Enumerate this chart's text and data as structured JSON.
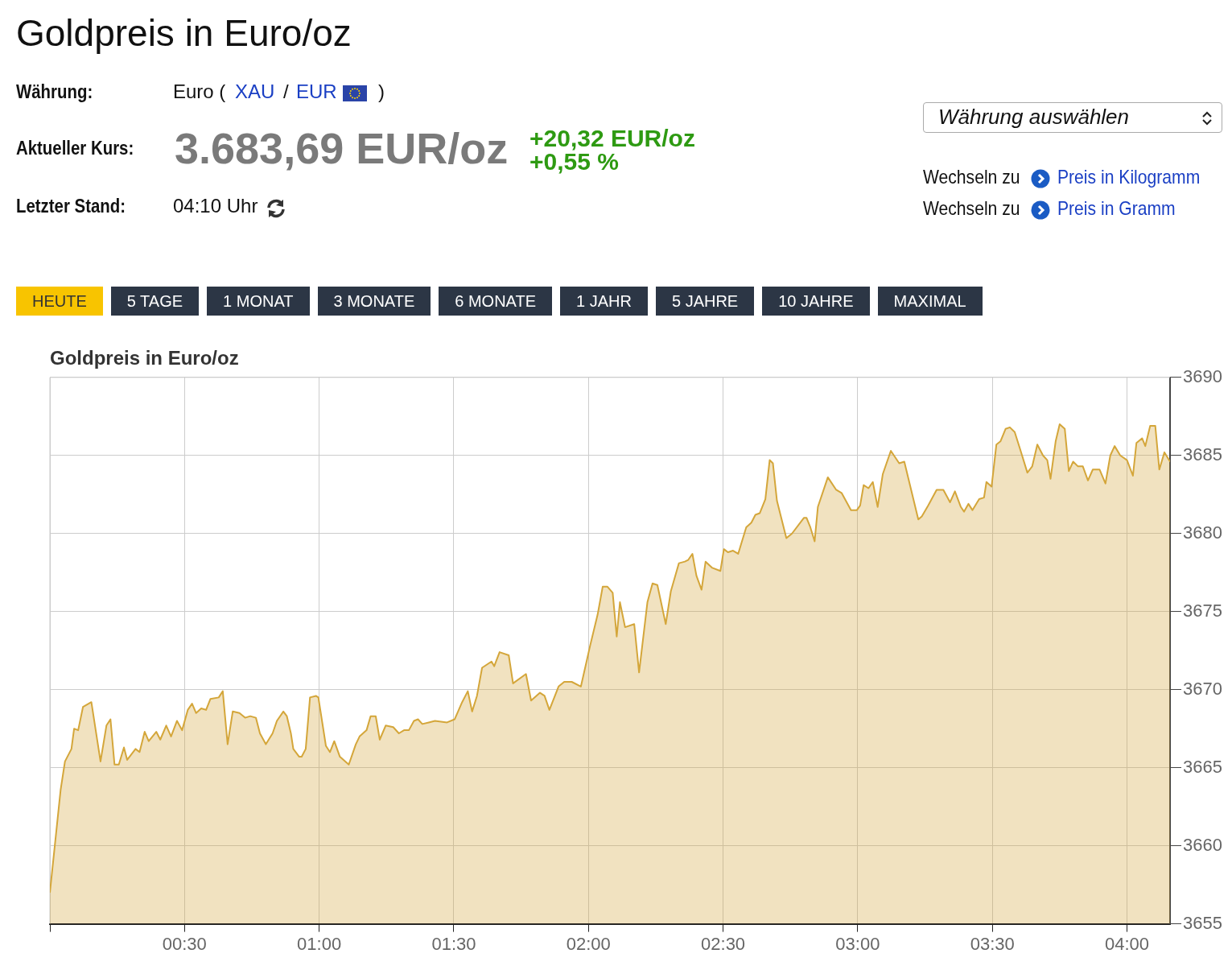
{
  "chart_data": {
    "type": "area",
    "title": "Goldpreis in Euro/oz",
    "annotations": [
      "Goldpreis in Euro/oz",
      "Währung:",
      "Euro (",
      "XAU",
      "/",
      "EUR",
      ")",
      "Aktueller Kurs:",
      "3.683,69 EUR/oz",
      "+20,32 EUR/oz",
      "+0,55 %",
      "Letzter Stand:",
      "04:10 Uhr",
      "Währung auswählen",
      "Wechseln zu",
      "Preis in Kilogramm",
      "Wechseln zu",
      "Preis in Gramm",
      "HEUTE",
      "5 TAGE",
      "1 MONAT",
      "3 MONATE",
      "6 MONATE",
      "1 JAHR",
      "5 JAHRE",
      "10 JAHRE",
      "MAXIMAL"
    ],
    "x": [
      0,
      0.04,
      0.056,
      0.08,
      0.09,
      0.105,
      0.123,
      0.154,
      0.188,
      0.21,
      0.225,
      0.24,
      0.256,
      0.275,
      0.287,
      0.318,
      0.333,
      0.352,
      0.367,
      0.395,
      0.41,
      0.432,
      0.45,
      0.472,
      0.491,
      0.512,
      0.528,
      0.543,
      0.562,
      0.58,
      0.596,
      0.627,
      0.642,
      0.66,
      0.679,
      0.704,
      0.725,
      0.744,
      0.765,
      0.78,
      0.802,
      0.827,
      0.843,
      0.867,
      0.88,
      0.895,
      0.904,
      0.926,
      0.935,
      0.95,
      0.966,
      0.988,
      0.997,
      1.025,
      1.04,
      1.056,
      1.077,
      1.11,
      1.136,
      1.15,
      1.176,
      1.191,
      1.21,
      1.225,
      1.247,
      1.275,
      1.296,
      1.315,
      1.333,
      1.352,
      1.367,
      1.383,
      1.407,
      1.43,
      1.475,
      1.503,
      1.531,
      1.552,
      1.568,
      1.586,
      1.605,
      1.64,
      1.65,
      1.67,
      1.704,
      1.72,
      1.768,
      1.787,
      1.82,
      1.837,
      1.855,
      1.889,
      1.91,
      1.938,
      1.972,
      2.006,
      2.034,
      2.053,
      2.07,
      2.09,
      2.105,
      2.117,
      2.136,
      2.17,
      2.188,
      2.219,
      2.238,
      2.256,
      2.287,
      2.306,
      2.336,
      2.358,
      2.37,
      2.386,
      2.401,
      2.42,
      2.435,
      2.46,
      2.49,
      2.503,
      2.518,
      2.537,
      2.556,
      2.586,
      2.605,
      2.62,
      2.636,
      2.657,
      2.673,
      2.685,
      2.7,
      2.735,
      2.756,
      2.8,
      2.81,
      2.824,
      2.84,
      2.852,
      2.889,
      2.92,
      2.94,
      2.975,
      2.997,
      3.009,
      3.022,
      3.04,
      3.056,
      3.074,
      3.093,
      3.123,
      3.154,
      3.173,
      3.225,
      3.238,
      3.262,
      3.293,
      3.318,
      3.343,
      3.361,
      3.383,
      3.395,
      3.411,
      3.426,
      3.451,
      3.469,
      3.478,
      3.497,
      3.515,
      3.53,
      3.549,
      3.565,
      3.583,
      3.605,
      3.63,
      3.648,
      3.667,
      3.688,
      3.704,
      3.716,
      3.735,
      3.75,
      3.769,
      3.784,
      3.8,
      3.818,
      3.836,
      3.855,
      3.873,
      3.898,
      3.92,
      3.938,
      3.954,
      3.975,
      4.0,
      4.022,
      4.035,
      4.056,
      4.068,
      4.086,
      4.105,
      4.12,
      4.139,
      4.16
    ],
    "values": [
      3657.0,
      3663.6,
      3665.4,
      3666.2,
      3667.5,
      3667.4,
      3668.9,
      3669.2,
      3665.4,
      3667.7,
      3668.1,
      3665.2,
      3665.2,
      3666.3,
      3665.5,
      3666.2,
      3666.0,
      3667.3,
      3666.7,
      3667.3,
      3666.8,
      3667.7,
      3667.0,
      3668.0,
      3667.4,
      3668.7,
      3669.1,
      3668.5,
      3668.8,
      3668.7,
      3669.4,
      3669.5,
      3669.9,
      3666.5,
      3668.6,
      3668.5,
      3668.2,
      3668.3,
      3668.2,
      3667.2,
      3666.5,
      3667.2,
      3668.0,
      3668.6,
      3668.3,
      3667.2,
      3666.2,
      3665.7,
      3665.7,
      3666.2,
      3669.5,
      3669.6,
      3669.5,
      3666.4,
      3666.0,
      3666.7,
      3665.7,
      3665.2,
      3666.5,
      3667.0,
      3667.4,
      3668.3,
      3668.3,
      3666.8,
      3667.7,
      3667.6,
      3667.2,
      3667.4,
      3667.4,
      3668.0,
      3668.1,
      3667.8,
      3667.9,
      3668.0,
      3667.9,
      3668.1,
      3669.2,
      3669.9,
      3668.6,
      3669.6,
      3671.4,
      3671.8,
      3671.5,
      3672.4,
      3672.2,
      3670.4,
      3671.0,
      3669.3,
      3669.8,
      3669.6,
      3668.7,
      3670.2,
      3670.5,
      3670.5,
      3670.2,
      3672.8,
      3674.8,
      3676.6,
      3676.6,
      3676.2,
      3673.4,
      3675.6,
      3674.0,
      3674.2,
      3671.1,
      3675.6,
      3676.8,
      3676.7,
      3674.2,
      3676.3,
      3678.1,
      3678.2,
      3678.3,
      3678.7,
      3677.3,
      3676.4,
      3678.2,
      3677.8,
      3677.6,
      3679.0,
      3678.8,
      3678.9,
      3678.7,
      3680.4,
      3680.7,
      3681.2,
      3681.3,
      3682.2,
      3684.7,
      3684.5,
      3682.1,
      3679.7,
      3680.0,
      3681.0,
      3681.0,
      3680.4,
      3679.5,
      3681.7,
      3683.6,
      3682.8,
      3682.6,
      3681.5,
      3681.5,
      3681.8,
      3683.1,
      3682.9,
      3683.3,
      3681.7,
      3683.8,
      3685.3,
      3684.5,
      3684.6,
      3680.9,
      3681.1,
      3681.8,
      3682.8,
      3682.8,
      3682.0,
      3682.7,
      3681.7,
      3681.4,
      3681.9,
      3681.5,
      3682.2,
      3682.3,
      3683.3,
      3683.0,
      3685.7,
      3685.9,
      3686.7,
      3686.8,
      3686.5,
      3685.3,
      3683.9,
      3684.3,
      3685.7,
      3685.0,
      3684.7,
      3683.5,
      3685.9,
      3687.0,
      3686.7,
      3684.0,
      3684.6,
      3684.3,
      3684.3,
      3683.4,
      3684.1,
      3684.1,
      3683.2,
      3685.0,
      3685.6,
      3685.0,
      3684.7,
      3683.7,
      3685.8,
      3686.1,
      3685.6,
      3686.9,
      3686.9,
      3684.1,
      3685.2,
      3684.6
    ],
    "color": "#d4a63a",
    "marker": "none",
    "grid": true,
    "xlim": [
      0,
      4.16
    ],
    "xticks": [
      {
        "value": 0,
        "label": null
      },
      {
        "value": 0.5,
        "label": "00:30"
      },
      {
        "value": 1,
        "label": "01:00"
      },
      {
        "value": 1.5,
        "label": "01:30"
      },
      {
        "value": 2,
        "label": "02:00"
      },
      {
        "value": 2.5,
        "label": "02:30"
      },
      {
        "value": 3,
        "label": "03:00"
      },
      {
        "value": 3.5,
        "label": "03:30"
      },
      {
        "value": 4,
        "label": "04:00"
      }
    ],
    "ylim": [
      3655,
      3690
    ],
    "yticks": [
      3655,
      3660,
      3665,
      3670,
      3675,
      3680,
      3685,
      3690
    ]
  }
}
